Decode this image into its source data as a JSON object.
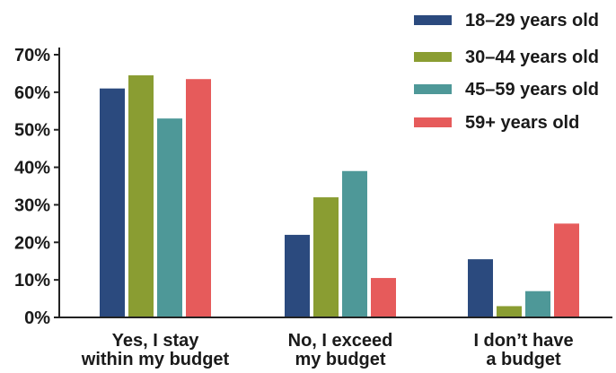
{
  "chart_data": {
    "type": "bar",
    "title": "",
    "xlabel": "",
    "ylabel": "",
    "ylim": [
      0,
      70
    ],
    "yticks": [
      0,
      10,
      20,
      30,
      40,
      50,
      60,
      70
    ],
    "ytick_labels": [
      "0%",
      "10%",
      "20%",
      "30%",
      "40%",
      "50%",
      "60%",
      "70%"
    ],
    "grid": false,
    "legend_position": "top-right",
    "categories": [
      [
        "Yes, I stay",
        "within my budget"
      ],
      [
        "No, I exceed",
        "my budget"
      ],
      [
        "I don’t have",
        "a budget"
      ]
    ],
    "series": [
      {
        "name": "18–29 years old",
        "color": "#2b4a7e",
        "values": [
          61,
          22,
          15.5
        ]
      },
      {
        "name": "30–44 years old",
        "color": "#8a9d32",
        "values": [
          64.5,
          32,
          3
        ]
      },
      {
        "name": "45–59 years old",
        "color": "#4e9898",
        "values": [
          53,
          39,
          7
        ]
      },
      {
        "name": "59+ years old",
        "color": "#e65b5b",
        "values": [
          63.5,
          10.5,
          25
        ]
      }
    ]
  }
}
